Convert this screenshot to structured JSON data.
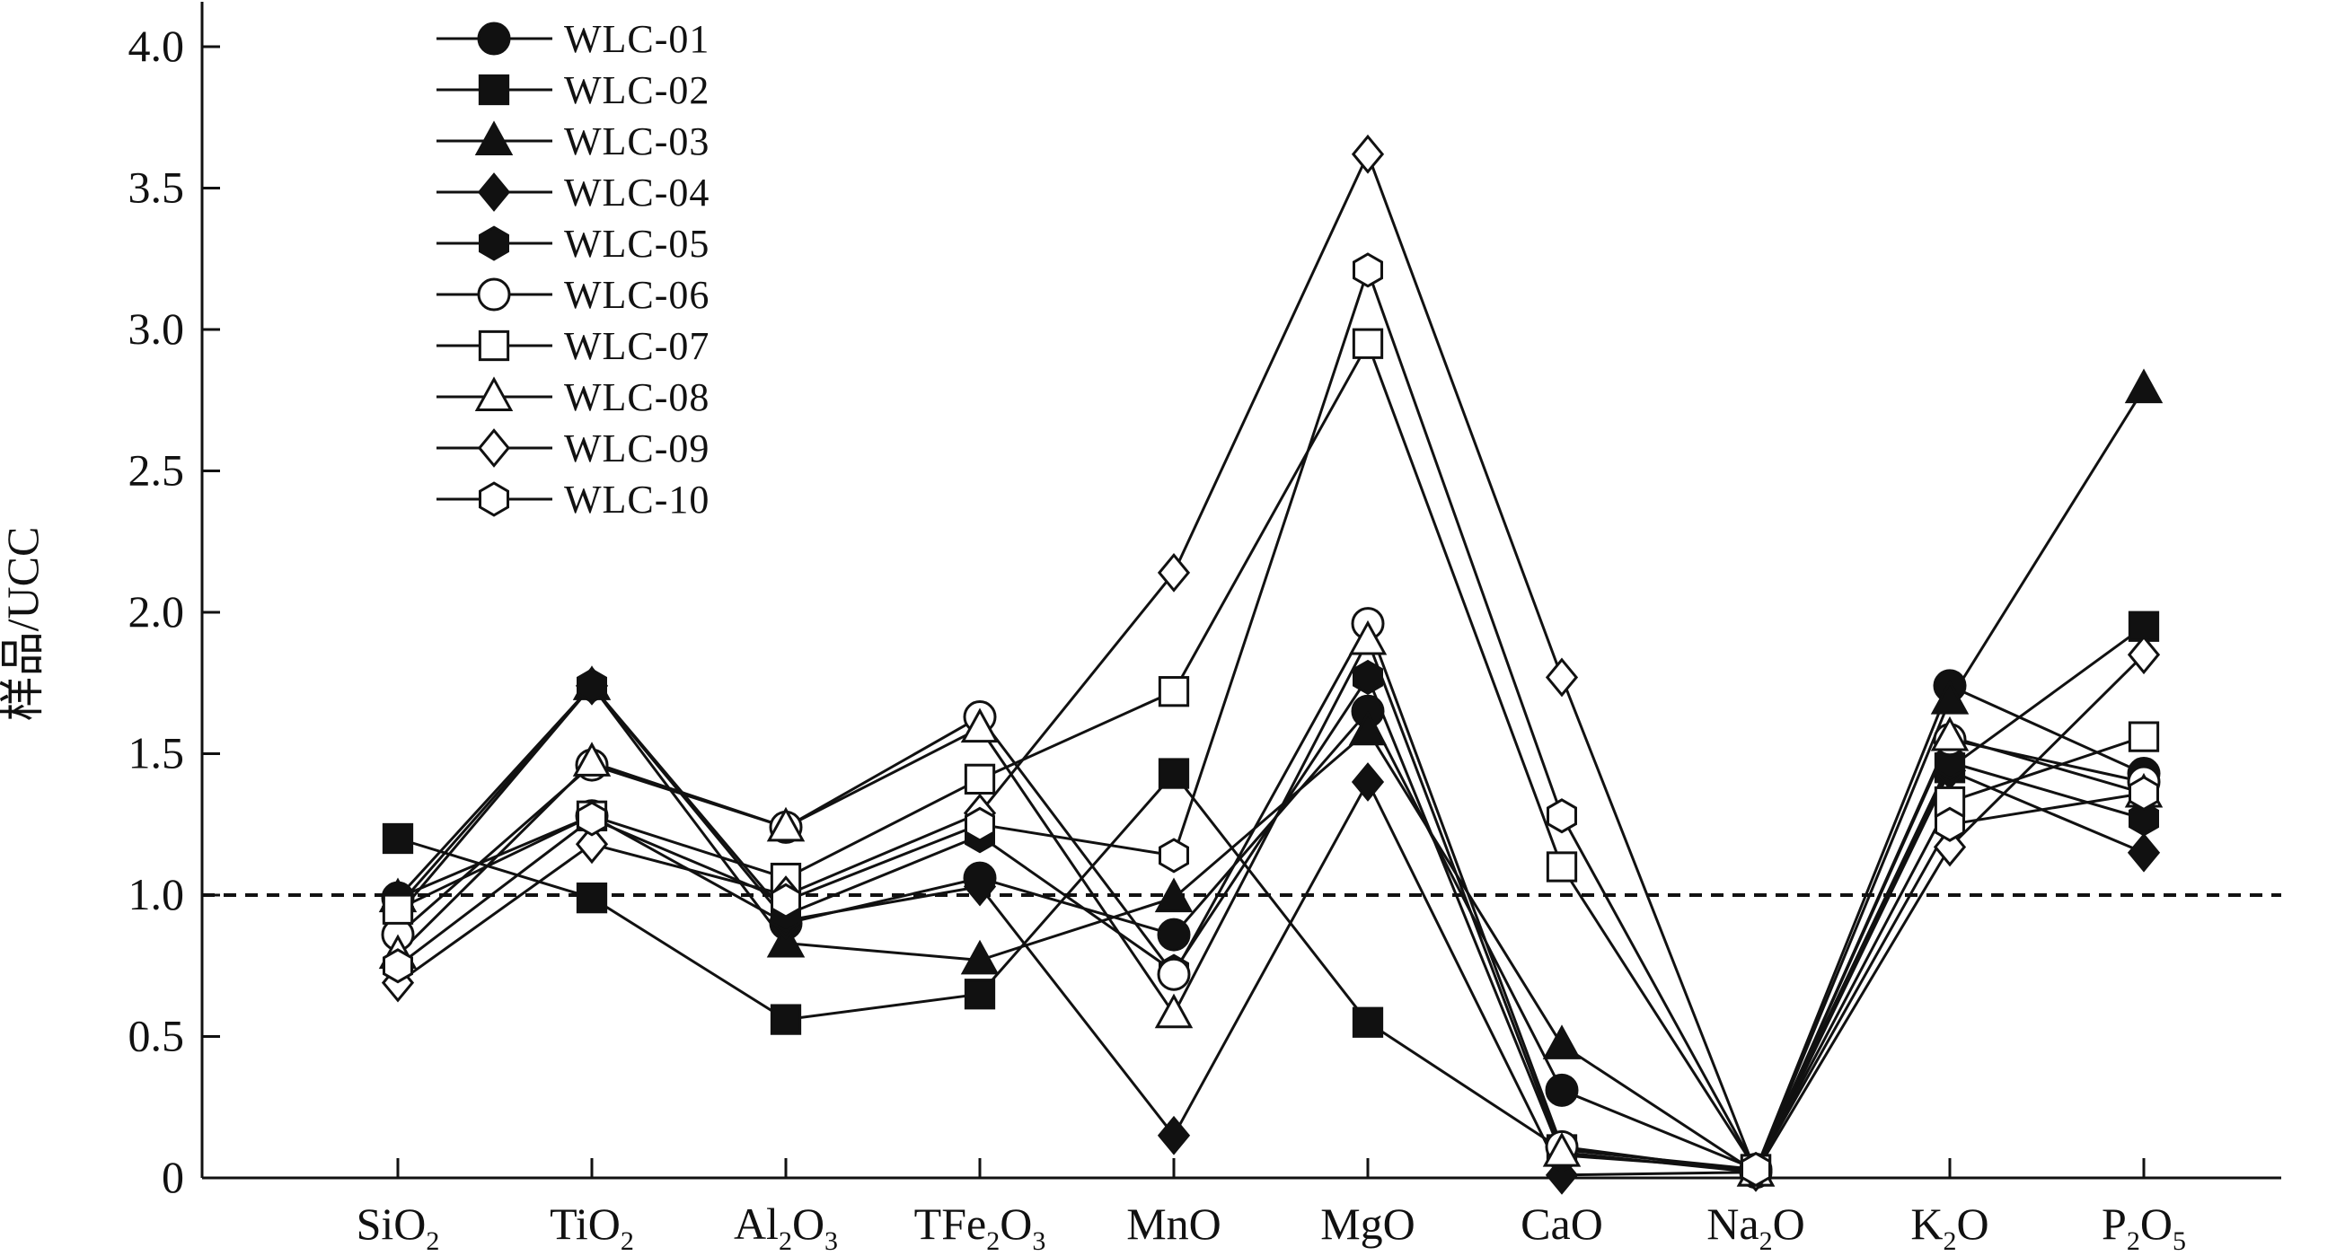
{
  "chart_data": {
    "type": "line",
    "title": "",
    "ylabel": "样品/UCC",
    "xlabel": "",
    "ylim": [
      0,
      4.1
    ],
    "yticks": [
      0,
      0.5,
      1.0,
      1.5,
      2.0,
      2.5,
      3.0,
      3.5,
      4.0
    ],
    "ytick_labels": [
      "0",
      "0.5",
      "1.0",
      "1.5",
      "2.0",
      "2.5",
      "3.0",
      "3.5",
      "4.0"
    ],
    "categories": [
      {
        "main": "SiO",
        "sub": "2",
        "main2": "",
        "sub2": ""
      },
      {
        "main": "TiO",
        "sub": "2",
        "main2": "",
        "sub2": ""
      },
      {
        "main": "Al",
        "sub": "2",
        "main2": "O",
        "sub2": "3"
      },
      {
        "main": "TFe",
        "sub": "2",
        "main2": "O",
        "sub2": "3"
      },
      {
        "main": "MnO",
        "sub": "",
        "main2": "",
        "sub2": ""
      },
      {
        "main": "MgO",
        "sub": "",
        "main2": "",
        "sub2": ""
      },
      {
        "main": "CaO",
        "sub": "",
        "main2": "",
        "sub2": ""
      },
      {
        "main": "Na",
        "sub": "2",
        "main2": "O",
        "sub2": ""
      },
      {
        "main": "K",
        "sub": "2",
        "main2": "O",
        "sub2": ""
      },
      {
        "main": "P",
        "sub": "2",
        "main2": "O",
        "sub2": "5"
      }
    ],
    "reference_line": {
      "value": 1.0,
      "style": "dashed"
    },
    "legend_position": "top-left",
    "grid": false,
    "series": [
      {
        "name": "WLC-01",
        "marker": "circle",
        "filled": true,
        "values": [
          0.99,
          1.28,
          0.9,
          1.06,
          0.86,
          1.65,
          0.31,
          0.03,
          1.74,
          1.43
        ]
      },
      {
        "name": "WLC-02",
        "marker": "square",
        "filled": true,
        "values": [
          1.2,
          0.99,
          0.56,
          0.65,
          1.43,
          0.55,
          0.1,
          0.03,
          1.45,
          1.95
        ]
      },
      {
        "name": "WLC-03",
        "marker": "triangle",
        "filled": true,
        "values": [
          0.99,
          1.74,
          0.83,
          0.77,
          0.99,
          1.58,
          0.47,
          0.02,
          1.69,
          2.79
        ]
      },
      {
        "name": "WLC-04",
        "marker": "diamond",
        "filled": true,
        "values": [
          0.96,
          1.74,
          0.91,
          1.03,
          0.15,
          1.4,
          0.01,
          0.02,
          1.44,
          1.15
        ]
      },
      {
        "name": "WLC-05",
        "marker": "hexagon",
        "filled": true,
        "values": [
          0.93,
          1.74,
          0.93,
          1.21,
          0.73,
          1.77,
          0.08,
          0.03,
          1.47,
          1.27
        ]
      },
      {
        "name": "WLC-06",
        "marker": "circle",
        "filled": false,
        "values": [
          0.86,
          1.46,
          1.24,
          1.63,
          0.72,
          1.96,
          0.11,
          0.02,
          1.55,
          1.4
        ]
      },
      {
        "name": "WLC-07",
        "marker": "square",
        "filled": false,
        "values": [
          0.95,
          1.28,
          1.06,
          1.41,
          1.72,
          2.95,
          1.1,
          0.03,
          1.33,
          1.56
        ]
      },
      {
        "name": "WLC-08",
        "marker": "triangle",
        "filled": false,
        "values": [
          0.79,
          1.47,
          1.24,
          1.59,
          0.58,
          1.9,
          0.09,
          0.02,
          1.56,
          1.36
        ]
      },
      {
        "name": "WLC-09",
        "marker": "diamond",
        "filled": false,
        "values": [
          0.69,
          1.18,
          1.0,
          1.29,
          2.14,
          3.62,
          1.77,
          0.02,
          1.17,
          1.85
        ]
      },
      {
        "name": "WLC-10",
        "marker": "hexagon",
        "filled": false,
        "values": [
          0.75,
          1.27,
          0.98,
          1.25,
          1.14,
          3.21,
          1.28,
          0.03,
          1.25,
          1.36
        ]
      }
    ]
  }
}
